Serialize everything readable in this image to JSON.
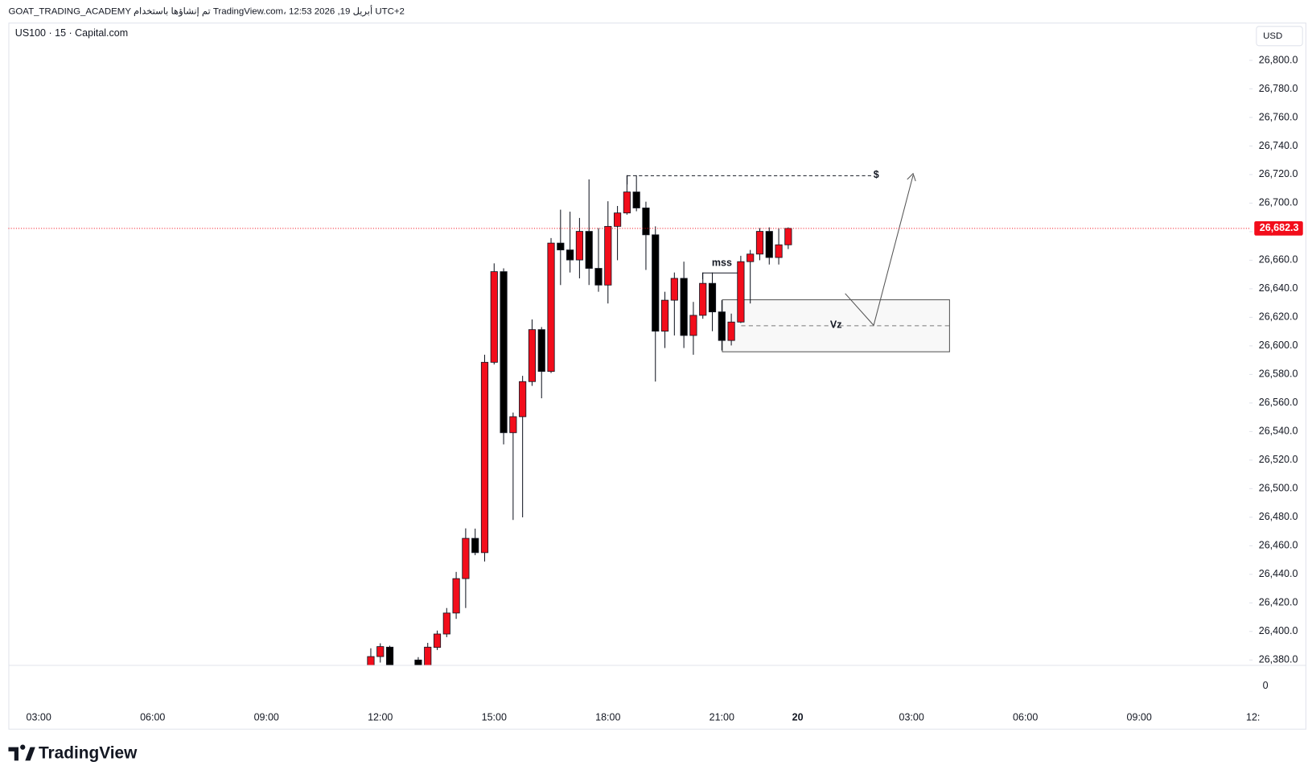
{
  "header": "GOAT_TRADING_ACADEMY تم إنشاؤها باستخدام TradingView.com، 12:53 2026 ,19 أبريل UTC+2",
  "symbol": "US100 · 15 · Capital.com",
  "currency": "USD",
  "brand": "TradingView",
  "chart_data": {
    "type": "candlestick",
    "up_color": "#f20d1b",
    "down_color": "#000000",
    "x": [
      35,
      36,
      37,
      40,
      41,
      42,
      43,
      44,
      45,
      46,
      47,
      48,
      49,
      50,
      51,
      52,
      53,
      54,
      55,
      56,
      57,
      58,
      59,
      60,
      61,
      62,
      63,
      64,
      65,
      66,
      67,
      68,
      69,
      70,
      71,
      72,
      73,
      74,
      75,
      76,
      77,
      78,
      79
    ],
    "open": [
      26375.3,
      26382.4,
      26389,
      26380,
      26375,
      26388.8,
      26398.2,
      26412.9,
      26437,
      26465.2,
      26455.2,
      26588.5,
      26652,
      26539.2,
      26550.4,
      26575,
      26611.4,
      26582.1,
      26672,
      26667.2,
      26660.2,
      26680.2,
      26654.3,
      26642.6,
      26683.7,
      26693.1,
      26707.8,
      26696.6,
      26677.8,
      26610.3,
      26632,
      26647.3,
      26607.3,
      26621.4,
      26643.8,
      26623.8,
      26603.8,
      26616.7,
      26659,
      26664.3,
      26680.2,
      26661.9,
      26670.8
    ],
    "high": [
      26388.2,
      26391.7,
      26390,
      26382,
      26392,
      26400.6,
      26416.4,
      26441.7,
      26472.2,
      26472,
      26593.8,
      26657.8,
      26654.3,
      26553.3,
      26579,
      26618.5,
      26613.2,
      26675.5,
      26695.4,
      26694,
      26689.6,
      26716.6,
      26682.5,
      26701.3,
      26698,
      26719.5,
      26719.5,
      26701,
      26683.7,
      26637.9,
      26651.4,
      26659,
      26630.8,
      26651.4,
      26651.4,
      26632,
      26622.6,
      26663.1,
      26667.2,
      26682.5,
      26683,
      26682.5,
      26683
    ],
    "low": [
      26372,
      26378.2,
      26372,
      26372,
      26372,
      26387,
      26396,
      26408.8,
      26416.4,
      26453.4,
      26449,
      26587,
      26531,
      26478.1,
      26479.9,
      26572,
      26563.3,
      26581,
      26642.6,
      26651.4,
      26647.3,
      26642.6,
      26637.9,
      26629.7,
      26660,
      26691.9,
      26694.3,
      26653.2,
      26575,
      26598.5,
      26607.3,
      26598.5,
      26593.8,
      26619,
      26610.3,
      26596.8,
      26600.3,
      26616,
      26629.7,
      26660,
      26657,
      26657,
      26667.8
    ],
    "close": [
      26382.4,
      26389.4,
      26375,
      26375,
      26389,
      26398.2,
      26412.9,
      26437,
      26465.2,
      26455.2,
      26588.5,
      26652,
      26539.2,
      26550.4,
      26575,
      26611.4,
      26582.1,
      26672,
      26667.2,
      26660.2,
      26680.2,
      26654.3,
      26642.6,
      26683.7,
      26693.1,
      26707.8,
      26696.6,
      26677.8,
      26610.3,
      26632,
      26647.3,
      26607.3,
      26621.4,
      26643.8,
      26623.8,
      26603.8,
      26616.7,
      26659,
      26664.3,
      26680.2,
      26661.9,
      26670.8,
      26682.3
    ],
    "xlim": [
      -3.2,
      127.6
    ],
    "xticks": [
      {
        "value": 0,
        "label": "03:00"
      },
      {
        "value": 12,
        "label": "06:00"
      },
      {
        "value": 24,
        "label": "09:00"
      },
      {
        "value": 36,
        "label": "12:00"
      },
      {
        "value": 48,
        "label": "15:00"
      },
      {
        "value": 60,
        "label": "18:00"
      },
      {
        "value": 72,
        "label": "21:00"
      },
      {
        "value": 80,
        "label": "20"
      },
      {
        "value": 92,
        "label": "03:00"
      },
      {
        "value": 104,
        "label": "06:00"
      },
      {
        "value": 116,
        "label": "09:00"
      },
      {
        "value": 128,
        "label": "12:"
      }
    ],
    "ylim": [
      26376.5,
      26826.4
    ],
    "yticks": [
      {
        "value": 26380,
        "label": "26,380.0"
      },
      {
        "value": 26400,
        "label": "26,400.0"
      },
      {
        "value": 26420,
        "label": "26,420.0"
      },
      {
        "value": 26440,
        "label": "26,440.0"
      },
      {
        "value": 26460,
        "label": "26,460.0"
      },
      {
        "value": 26480,
        "label": "26,480.0"
      },
      {
        "value": 26500,
        "label": "26,500.0"
      },
      {
        "value": 26520,
        "label": "26,520.0"
      },
      {
        "value": 26540,
        "label": "26,540.0"
      },
      {
        "value": 26560,
        "label": "26,560.0"
      },
      {
        "value": 26580,
        "label": "26,580.0"
      },
      {
        "value": 26600,
        "label": "26,600.0"
      },
      {
        "value": 26620,
        "label": "26,620.0"
      },
      {
        "value": 26640,
        "label": "26,640.0"
      },
      {
        "value": 26660,
        "label": "26,660.0"
      },
      {
        "value": 26680,
        "label": "26,680.0"
      },
      {
        "value": 26700,
        "label": "26,700.0"
      },
      {
        "value": 26720,
        "label": "26,720.0"
      },
      {
        "value": 26740,
        "label": "26,740.0"
      },
      {
        "value": 26760,
        "label": "26,760.0"
      },
      {
        "value": 26780,
        "label": "26,780.0"
      },
      {
        "value": 26800,
        "label": "26,800.0"
      }
    ],
    "volume_yticks": [
      0
    ],
    "last_price": {
      "value": 26682.3,
      "label": "26,682.3",
      "color": "#f20d1b"
    },
    "annotations": [
      "$",
      "mss",
      "Vz"
    ]
  }
}
